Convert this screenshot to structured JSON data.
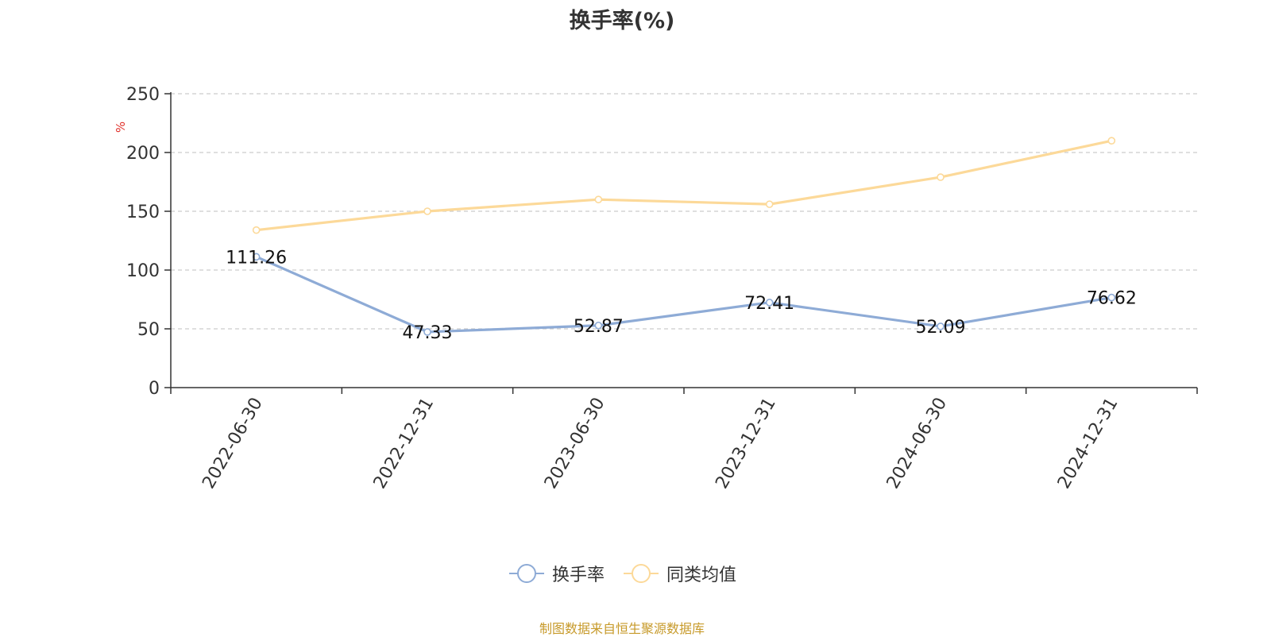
{
  "chart_data": {
    "type": "line",
    "title": "换手率(%)",
    "ylabel": "%",
    "xlabel": "",
    "categories": [
      "2022-06-30",
      "2022-12-31",
      "2023-06-30",
      "2023-12-31",
      "2024-06-30",
      "2024-12-31"
    ],
    "y_ticks": [
      "0",
      "50",
      "100",
      "150",
      "200",
      "250"
    ],
    "ylim": [
      0,
      250
    ],
    "grid": true,
    "legend_position": "bottom",
    "series": [
      {
        "name": "换手率",
        "color": "#8eabd6",
        "values": [
          111.26,
          47.33,
          52.87,
          72.41,
          52.09,
          76.62
        ],
        "labels": [
          "111.26",
          "47.33",
          "52.87",
          "72.41",
          "52.09",
          "76.62"
        ]
      },
      {
        "name": "同类均值",
        "color": "#fcd999",
        "values": [
          134,
          150,
          160,
          156,
          179,
          210
        ]
      }
    ]
  },
  "legend": {
    "items": [
      "换手率",
      "同类均值"
    ]
  },
  "source_note": "制图数据来自恒生聚源数据库",
  "colors": {
    "axis": "#333333",
    "grid": "#cccccc",
    "unit_label": "#e0312b",
    "source_note": "#c79a2a"
  }
}
